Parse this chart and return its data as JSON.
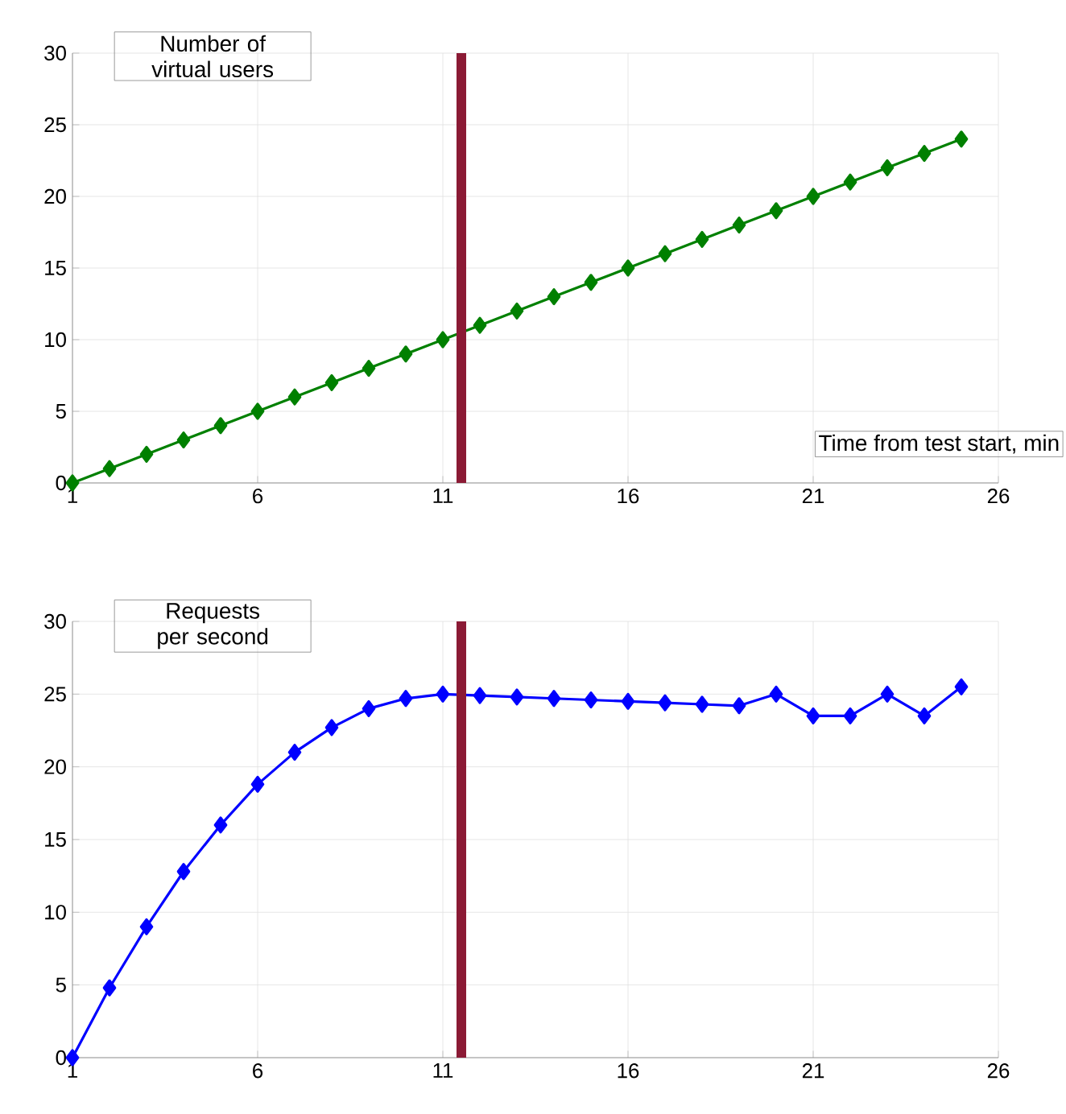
{
  "chart_data": [
    {
      "type": "line",
      "ylabel": "Number of virtual users",
      "xlabel": "Time from test start, min",
      "x": [
        1,
        2,
        3,
        4,
        5,
        6,
        7,
        8,
        9,
        10,
        11,
        12,
        13,
        14,
        15,
        16,
        17,
        18,
        19,
        20,
        21,
        22,
        23,
        24,
        25
      ],
      "series": [
        {
          "color": "#008000",
          "values": [
            0,
            1,
            2,
            3,
            4,
            5,
            6,
            7,
            8,
            9,
            10,
            11,
            12,
            13,
            14,
            15,
            16,
            17,
            18,
            19,
            20,
            21,
            22,
            23,
            24
          ]
        }
      ],
      "xlim": [
        1,
        26
      ],
      "xticks": [
        1,
        6,
        11,
        16,
        21,
        26
      ],
      "ylim": [
        0,
        30
      ],
      "yticks": [
        0,
        5,
        10,
        15,
        20,
        25,
        30
      ],
      "grid": true,
      "marker": "diamond",
      "ref_lines": [
        {
          "axis": "x",
          "value": 11.5,
          "color": "#8b1a35"
        }
      ]
    },
    {
      "type": "line",
      "ylabel": "Requests per second",
      "x": [
        1,
        2,
        3,
        4,
        5,
        6,
        7,
        8,
        9,
        10,
        11,
        12,
        13,
        14,
        15,
        16,
        17,
        18,
        19,
        20,
        21,
        22,
        23,
        24,
        25
      ],
      "series": [
        {
          "color": "#0000ff",
          "values": [
            0,
            4.8,
            9,
            12.8,
            16,
            18.8,
            21,
            22.7,
            24,
            24.7,
            25,
            24.9,
            24.8,
            24.7,
            24.6,
            24.5,
            24.4,
            24.3,
            24.2,
            25,
            23.5,
            23.5,
            25,
            23.5,
            25.5
          ]
        }
      ],
      "xlim": [
        1,
        26
      ],
      "xticks": [
        1,
        6,
        11,
        16,
        21,
        26
      ],
      "ylim": [
        0,
        30
      ],
      "yticks": [
        0,
        5,
        10,
        15,
        20,
        25,
        30
      ],
      "grid": true,
      "marker": "diamond",
      "ref_lines": [
        {
          "axis": "x",
          "value": 11.5,
          "color": "#8b1a35"
        }
      ]
    }
  ]
}
